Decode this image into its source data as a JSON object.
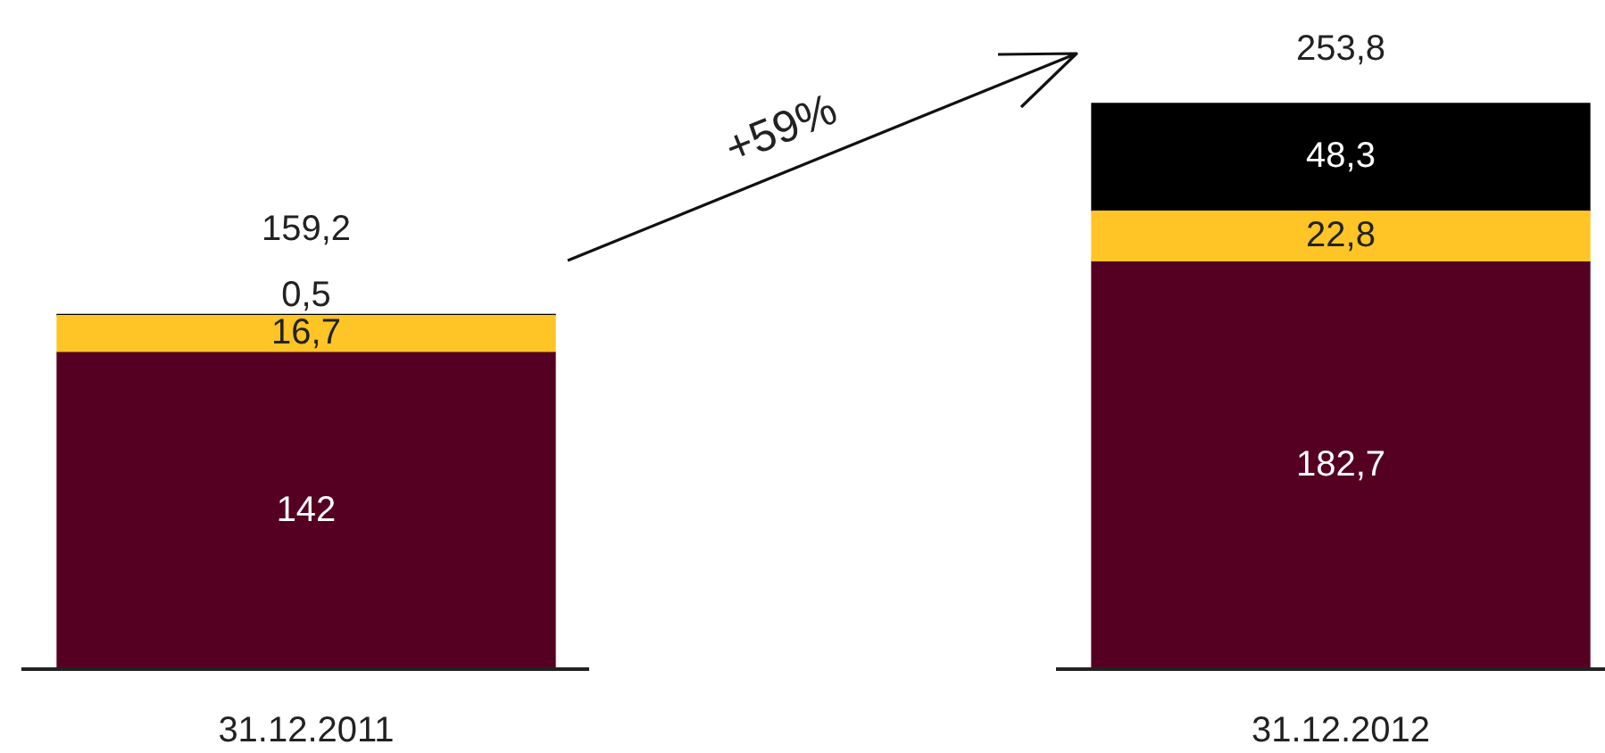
{
  "chart_data": {
    "type": "bar",
    "categories": [
      "31.12.2011",
      "31.12.2012"
    ],
    "stacked": true,
    "series": [
      {
        "color": "#550022",
        "values": [
          142,
          182.7
        ],
        "value_labels": [
          "142",
          "182,7"
        ]
      },
      {
        "color": "#ffc425",
        "values": [
          16.7,
          22.8
        ],
        "value_labels": [
          "16,7",
          "22,8"
        ]
      },
      {
        "color": "#000000",
        "values": [
          0.5,
          48.3
        ],
        "value_labels": [
          "0,5",
          "48,3"
        ]
      }
    ],
    "totals": [
      "159,2",
      "253,8"
    ],
    "annotations": [
      "+59%"
    ]
  }
}
